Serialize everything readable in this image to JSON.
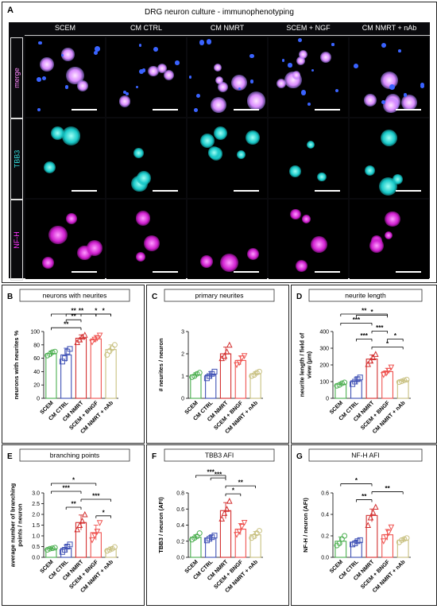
{
  "panel_a": {
    "letter": "A",
    "title": "DRG neuron culture - immunophenotyping",
    "columns": [
      "SCEM",
      "CM CTRL",
      "CM NMRT",
      "SCEM + NGF",
      "CM NMRT + nAb"
    ],
    "rows": [
      {
        "label": "merge",
        "color": "#ff88ff"
      },
      {
        "label": "TBB3",
        "color": "#33dddd"
      },
      {
        "label": "NF-H",
        "color": "#ff33ff"
      }
    ]
  },
  "chart_data": [
    {
      "letter": "B",
      "type": "bar",
      "title": "neurons with neurites",
      "ylabel": "neurons with neurites %",
      "categories": [
        "SCEM",
        "CM CTRL",
        "CM NMRT",
        "SCEM + BNGF",
        "CM NMRT + nAb"
      ],
      "ylim": [
        0,
        100
      ],
      "yticks": [
        "0",
        "20",
        "40",
        "60",
        "80",
        "100"
      ],
      "values": [
        67,
        65,
        90,
        89,
        73
      ],
      "err": [
        4,
        10,
        5,
        5,
        7
      ],
      "points": [
        [
          64,
          66,
          69,
          70
        ],
        [
          55,
          60,
          70,
          74
        ],
        [
          84,
          88,
          92,
          95
        ],
        [
          84,
          88,
          90,
          94
        ],
        [
          65,
          71,
          75,
          80
        ]
      ],
      "sig": [
        {
          "from": 0,
          "to": 2,
          "label": "**"
        },
        {
          "from": 1,
          "to": 2,
          "label": "**"
        },
        {
          "from": 2,
          "to": 4,
          "label": "*"
        },
        {
          "from": 3,
          "to": 4,
          "label": "*"
        },
        {
          "from": 1,
          "to": 3,
          "label": "**"
        },
        {
          "from": 0,
          "to": 3,
          "label": "**"
        }
      ]
    },
    {
      "letter": "C",
      "type": "bar",
      "title": "primary neurites",
      "ylabel": "# neurites / neuron",
      "categories": [
        "SCEM",
        "CM CTRL",
        "CM NMRT",
        "SCEM + BNGF",
        "CM NMRT + nAb"
      ],
      "ylim": [
        0,
        3
      ],
      "yticks": [
        "0",
        "1",
        "2",
        "3"
      ],
      "values": [
        1.05,
        1.05,
        2.0,
        1.7,
        1.1
      ],
      "err": [
        0.1,
        0.15,
        0.3,
        0.2,
        0.1
      ],
      "points": [
        [
          0.95,
          1.0,
          1.1,
          1.15
        ],
        [
          0.9,
          1.0,
          1.1,
          1.2
        ],
        [
          1.8,
          1.9,
          2.1,
          2.4
        ],
        [
          1.5,
          1.6,
          1.8,
          1.9
        ],
        [
          1.0,
          1.05,
          1.15,
          1.2
        ]
      ],
      "sig": []
    },
    {
      "letter": "D",
      "type": "bar",
      "title": "neurite length",
      "ylabel": "neurite length / field of view (µm)",
      "categories": [
        "SCEM",
        "CM CTRL",
        "CM NMRT",
        "SCEM + BNGF",
        "CM NMRT + nAb"
      ],
      "ylim": [
        0,
        400
      ],
      "yticks": [
        "0",
        "100",
        "200",
        "300",
        "400"
      ],
      "values": [
        85,
        105,
        235,
        160,
        105
      ],
      "err": [
        10,
        20,
        25,
        20,
        8
      ],
      "points": [
        [
          75,
          80,
          90,
          95
        ],
        [
          85,
          100,
          115,
          125
        ],
        [
          205,
          225,
          245,
          265
        ],
        [
          140,
          150,
          165,
          185
        ],
        [
          97,
          102,
          108,
          112
        ]
      ],
      "sig": [
        {
          "from": 2,
          "to": 4,
          "label": "*"
        },
        {
          "from": 3,
          "to": 4,
          "label": "*"
        },
        {
          "from": 1,
          "to": 2,
          "label": "***"
        },
        {
          "from": 2,
          "to": 3,
          "label": "***"
        },
        {
          "from": 0,
          "to": 2,
          "label": "***"
        },
        {
          "from": 1,
          "to": 3,
          "label": "*"
        },
        {
          "from": 0,
          "to": 3,
          "label": "**"
        }
      ]
    },
    {
      "letter": "E",
      "type": "bar",
      "title": "branching points",
      "ylabel": "average number of branching points / neuron",
      "categories": [
        "SCEM",
        "CM CTRL",
        "CM NMRT",
        "SCEM + BNGF",
        "CM NMRT + nAb"
      ],
      "ylim": [
        0,
        3.0
      ],
      "yticks": [
        "0.0",
        "0.5",
        "1.0",
        "1.5",
        "2.0",
        "2.5",
        "3.0"
      ],
      "values": [
        0.4,
        0.42,
        1.62,
        1.15,
        0.38
      ],
      "err": [
        0.05,
        0.15,
        0.35,
        0.35,
        0.1
      ],
      "points": [
        [
          0.35,
          0.4,
          0.42,
          0.45
        ],
        [
          0.25,
          0.35,
          0.5,
          0.6
        ],
        [
          1.3,
          1.5,
          1.7,
          2.0
        ],
        [
          0.8,
          1.0,
          1.2,
          1.6
        ],
        [
          0.3,
          0.35,
          0.4,
          0.48
        ]
      ],
      "sig": [
        {
          "from": 3,
          "to": 4,
          "label": "*"
        },
        {
          "from": 1,
          "to": 2,
          "label": "**"
        },
        {
          "from": 2,
          "to": 4,
          "label": "***"
        },
        {
          "from": 0,
          "to": 2,
          "label": "***"
        },
        {
          "from": 0,
          "to": 3,
          "label": "*"
        }
      ]
    },
    {
      "letter": "F",
      "type": "bar",
      "title": "TBB3 AFI",
      "ylabel": "TBB3 / neuron (AFI)",
      "categories": [
        "SCEM",
        "CM CTRL",
        "CM NMRT",
        "SCEM + BNGF",
        "CM NMRT + nAb"
      ],
      "ylim": [
        0,
        0.8
      ],
      "yticks": [
        "0.0",
        "0.2",
        "0.4",
        "0.6",
        "0.8"
      ],
      "values": [
        0.25,
        0.24,
        0.58,
        0.35,
        0.28
      ],
      "err": [
        0.03,
        0.03,
        0.1,
        0.07,
        0.04
      ],
      "points": [
        [
          0.22,
          0.24,
          0.26,
          0.3
        ],
        [
          0.21,
          0.23,
          0.25,
          0.27
        ],
        [
          0.48,
          0.55,
          0.6,
          0.7
        ],
        [
          0.28,
          0.32,
          0.38,
          0.43
        ],
        [
          0.24,
          0.26,
          0.3,
          0.33
        ]
      ],
      "sig": [
        {
          "from": 2,
          "to": 3,
          "label": "*"
        },
        {
          "from": 2,
          "to": 4,
          "label": "**"
        },
        {
          "from": 1,
          "to": 2,
          "label": "***"
        },
        {
          "from": 0,
          "to": 2,
          "label": "***"
        }
      ]
    },
    {
      "letter": "G",
      "type": "bar",
      "title": "NF-H AFI",
      "ylabel": "NF-H / neuron (AFI)",
      "categories": [
        "SCEM",
        "CM CTRL",
        "CM NMRT",
        "SCEM + BNGF",
        "CM NMRT + nAb"
      ],
      "ylim": [
        0,
        0.6
      ],
      "yticks": [
        "0.0",
        "0.2",
        "0.4",
        "0.6"
      ],
      "values": [
        0.15,
        0.14,
        0.39,
        0.21,
        0.16
      ],
      "err": [
        0.04,
        0.02,
        0.06,
        0.05,
        0.02
      ],
      "points": [
        [
          0.11,
          0.13,
          0.17,
          0.2
        ],
        [
          0.12,
          0.13,
          0.15,
          0.16
        ],
        [
          0.3,
          0.37,
          0.42,
          0.47
        ],
        [
          0.15,
          0.19,
          0.23,
          0.28
        ],
        [
          0.14,
          0.16,
          0.17,
          0.18
        ]
      ],
      "sig": [
        {
          "from": 1,
          "to": 2,
          "label": "**"
        },
        {
          "from": 2,
          "to": 4,
          "label": "**"
        },
        {
          "from": 0,
          "to": 2,
          "label": "*"
        }
      ]
    }
  ],
  "colors": [
    "#4caf50",
    "#3f51b5",
    "#d32f2f",
    "#ef5350",
    "#c8c080"
  ],
  "markers": [
    "circle",
    "square",
    "triangle-up",
    "triangle-down",
    "circle"
  ]
}
